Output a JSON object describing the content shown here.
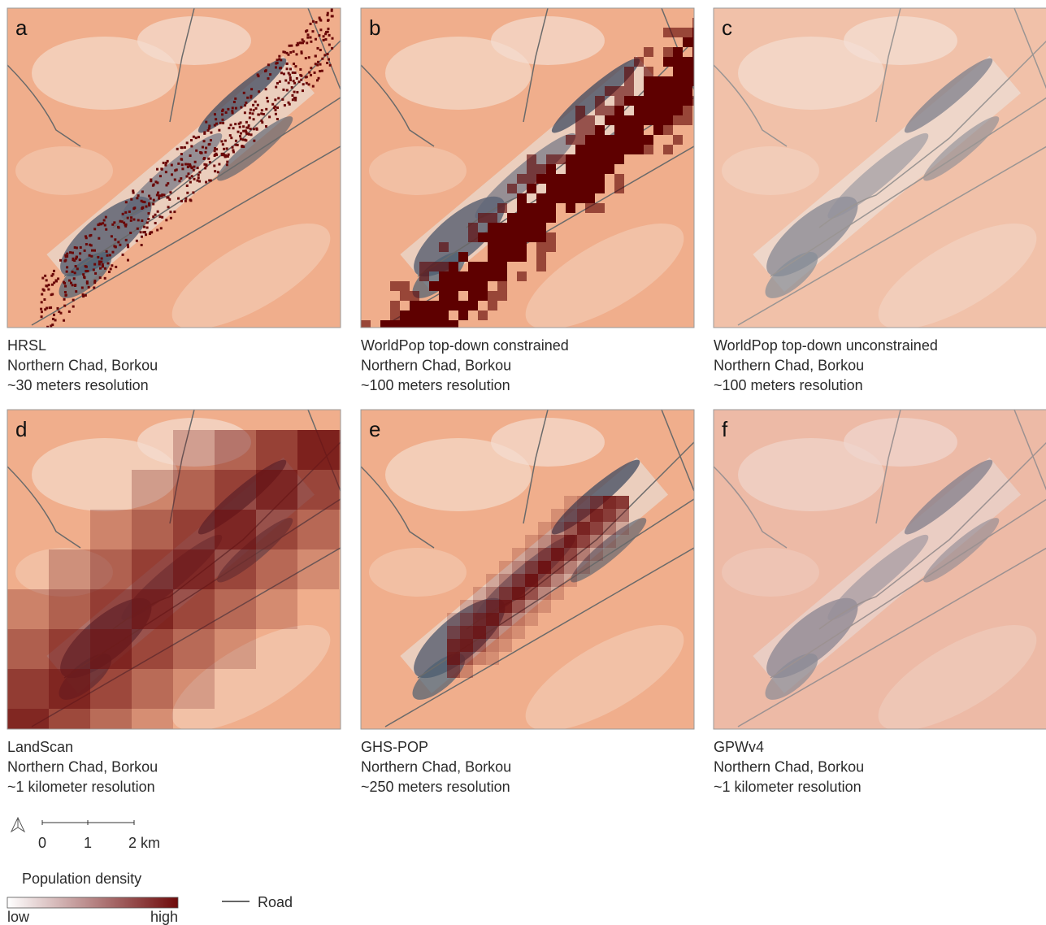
{
  "panels": [
    {
      "letter": "a",
      "caption": [
        "HRSL",
        "Northern Chad, Borkou",
        "~30 meters resolution"
      ]
    },
    {
      "letter": "b",
      "caption": [
        "WorldPop top-down constrained",
        "Northern Chad, Borkou",
        "~100 meters resolution"
      ]
    },
    {
      "letter": "c",
      "caption": [
        "WorldPop top-down unconstrained",
        "Northern Chad, Borkou",
        "~100 meters resolution"
      ]
    },
    {
      "letter": "d",
      "caption": [
        "LandScan",
        "Northern Chad, Borkou",
        "~1 kilometer resolution"
      ]
    },
    {
      "letter": "e",
      "caption": [
        "GHS-POP",
        "Northern Chad, Borkou",
        "~250 meters resolution"
      ]
    },
    {
      "letter": "f",
      "caption": [
        "GPWv4",
        "Northern Chad, Borkou",
        "~1 kilometer resolution"
      ]
    }
  ],
  "scale_bar": {
    "ticks": [
      "0",
      "1",
      "2 km"
    ]
  },
  "legend": {
    "title": "Population density",
    "low": "low",
    "high": "high",
    "road": "Road"
  }
}
